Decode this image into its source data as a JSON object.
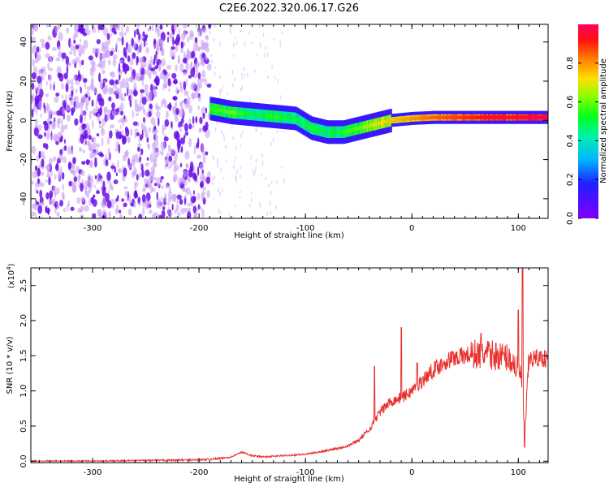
{
  "title": "C2E6.2022.320.06.17.G26",
  "colors": {
    "line": "#e8302e",
    "axis": "#000000"
  },
  "chart_data": [
    {
      "type": "heatmap",
      "xlabel": "Height of straight line (km)",
      "ylabel": "Frequency (Hz)",
      "xlim": [
        -358,
        128
      ],
      "ylim": [
        -50,
        49
      ],
      "xticks": [
        -300,
        -200,
        -100,
        0,
        100
      ],
      "xtick_labels": [
        "-300",
        "-200",
        "-100",
        "0",
        "100"
      ],
      "yticks": [
        -40,
        -20,
        0,
        20,
        40
      ],
      "ytick_labels": [
        "-40",
        "-20",
        "0",
        "20",
        "40"
      ],
      "colorbar": {
        "label": "Normalized spectral amplitude",
        "range": [
          0,
          1
        ],
        "ticks": [
          0.0,
          0.2,
          0.4,
          0.6,
          0.8
        ],
        "tick_labels": [
          "0.0",
          "0.2",
          "0.4",
          "0.6",
          "0.8"
        ],
        "colormap": "rainbow"
      },
      "noise_region_x": [
        -358,
        -190
      ],
      "ridge": [
        {
          "x": -190,
          "y": 6,
          "amp": 0.5
        },
        {
          "x": -170,
          "y": 4,
          "amp": 0.55
        },
        {
          "x": -150,
          "y": 3,
          "amp": 0.45
        },
        {
          "x": -130,
          "y": 2,
          "amp": 0.5
        },
        {
          "x": -110,
          "y": 1,
          "amp": 0.45
        },
        {
          "x": -95,
          "y": -4,
          "amp": 0.5
        },
        {
          "x": -80,
          "y": -6,
          "amp": 0.45
        },
        {
          "x": -65,
          "y": -6,
          "amp": 0.5
        },
        {
          "x": -50,
          "y": -4,
          "amp": 0.55
        },
        {
          "x": -35,
          "y": -2,
          "amp": 0.65
        },
        {
          "x": -20,
          "y": 0,
          "amp": 0.7
        },
        {
          "x": 0,
          "y": 1,
          "amp": 0.75
        },
        {
          "x": 20,
          "y": 1.5,
          "amp": 0.8
        },
        {
          "x": 50,
          "y": 1.5,
          "amp": 0.85
        },
        {
          "x": 80,
          "y": 1.5,
          "amp": 0.9
        },
        {
          "x": 100,
          "y": 1.5,
          "amp": 0.9
        },
        {
          "x": 128,
          "y": 1.5,
          "amp": 0.95
        }
      ]
    },
    {
      "type": "line",
      "xlabel": "Height of straight line (km)",
      "ylabel": "SNR (10 * v/v)",
      "y_multiplier": "(x10^4)",
      "xlim": [
        -358,
        128
      ],
      "ylim": [
        -0.02,
        2.75
      ],
      "xticks": [
        -300,
        -200,
        -100,
        0,
        100
      ],
      "xtick_labels": [
        "-300",
        "-200",
        "-100",
        "0",
        "100"
      ],
      "yticks": [
        0.0,
        0.5,
        1.0,
        1.5,
        2.0,
        2.5
      ],
      "ytick_labels": [
        "0.0",
        "0.5",
        "1.0",
        "1.5",
        "2.0",
        "2.5"
      ],
      "series": [
        {
          "x": [
            -358,
            -300,
            -250,
            -200,
            -180,
            -170,
            -160,
            -150,
            -140,
            -120,
            -100,
            -80,
            -60,
            -50,
            -40,
            -30,
            -20,
            -10,
            0,
            10,
            20,
            30,
            40,
            50,
            60,
            70,
            80,
            90,
            95,
            100,
            103,
            106,
            110,
            120,
            128
          ],
          "y": [
            0.0,
            0.0,
            0.01,
            0.02,
            0.04,
            0.06,
            0.13,
            0.08,
            0.06,
            0.08,
            0.1,
            0.15,
            0.22,
            0.3,
            0.45,
            0.7,
            0.85,
            0.9,
            1.0,
            1.15,
            1.3,
            1.4,
            1.48,
            1.5,
            1.52,
            1.52,
            1.5,
            1.48,
            1.4,
            1.3,
            1.2,
            0.35,
            1.45,
            1.47,
            1.46
          ],
          "spikes": [
            {
              "x": -35,
              "y": 1.35
            },
            {
              "x": -10,
              "y": 1.9
            },
            {
              "x": 5,
              "y": 1.4
            },
            {
              "x": 65,
              "y": 1.82
            },
            {
              "x": 100,
              "y": 2.15
            },
            {
              "x": 104,
              "y": 2.75
            },
            {
              "x": 106,
              "y": 0.2
            }
          ]
        }
      ]
    }
  ]
}
